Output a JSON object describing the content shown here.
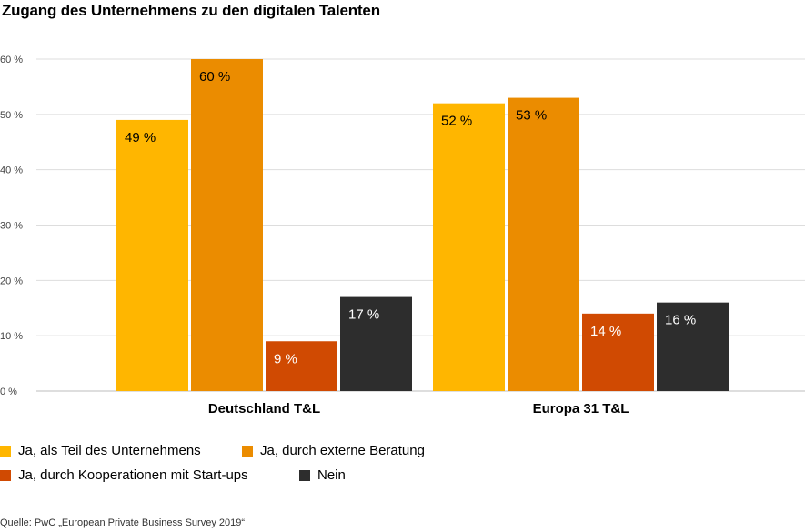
{
  "chart_data": {
    "type": "bar",
    "title": "Zugang des Unternehmens zu den digitalen Talenten",
    "categories": [
      "Deutschland T&L",
      "Europa 31 T&L"
    ],
    "series": [
      {
        "name": "Ja, als Teil des Unternehmens",
        "color": "#FFB600",
        "values": [
          49,
          52
        ],
        "labels": [
          "49 %",
          "52 %"
        ]
      },
      {
        "name": "Ja, durch externe Beratung",
        "color": "#EB8C00",
        "values": [
          60,
          53
        ],
        "labels": [
          "60 %",
          "53 %"
        ]
      },
      {
        "name": "Ja, durch Kooperationen mit Start-ups",
        "color": "#D04A02",
        "values": [
          9,
          14
        ],
        "labels": [
          "9 %",
          "14 %"
        ]
      },
      {
        "name": "Nein",
        "color": "#2D2D2D",
        "values": [
          17,
          16
        ],
        "labels": [
          "17 %",
          "16 %"
        ]
      }
    ],
    "y_ticks": [
      0,
      10,
      20,
      30,
      40,
      50,
      60
    ],
    "y_tick_labels": [
      "0 %",
      "10 %",
      "20 %",
      "30 %",
      "40 %",
      "50 %",
      "60 %"
    ],
    "ylim": [
      0,
      60
    ],
    "grid": true,
    "legend_position": "bottom-left"
  },
  "source": "Quelle: PwC „European Private Business Survey 2019“"
}
